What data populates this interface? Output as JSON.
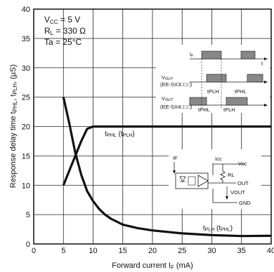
{
  "chart_data": {
    "type": "line",
    "xlabel": "Forward current I",
    "xlabel_sub": "F",
    "xlabel_unit": " (mA)",
    "ylabel": "Response delay time t",
    "ylabel_sub1": "PHL",
    "ylabel_mid": ", t",
    "ylabel_sub2": "PLH",
    "ylabel_unit": ", (µS)",
    "xlim": [
      0,
      40
    ],
    "ylim": [
      0,
      40
    ],
    "xticks": [
      0,
      5,
      10,
      15,
      20,
      25,
      30,
      35,
      40
    ],
    "yticks": [
      0,
      5,
      10,
      15,
      20,
      25,
      30,
      35,
      40
    ],
    "grid": true,
    "conditions": [
      {
        "main": "V",
        "sub": "CC",
        "rest": " = 5 V"
      },
      {
        "main": "R",
        "sub": "L",
        "rest": " = 330 Ω"
      },
      {
        "main": "Ta = 25°C",
        "sub": "",
        "rest": ""
      }
    ],
    "series": [
      {
        "label_main": "t",
        "label_sub": "PHL",
        "label_paren": " (t",
        "label_sub2": "PLH",
        "label_close": ")",
        "label_at": [
          12,
          18.4
        ],
        "x": [
          5,
          6,
          7,
          8,
          9,
          10,
          11,
          15,
          20,
          25,
          30,
          35,
          40
        ],
        "y": [
          10,
          12.5,
          15,
          17.5,
          19.6,
          20,
          20,
          20,
          20,
          20,
          20,
          20,
          20
        ]
      },
      {
        "label_main": "t",
        "label_sub": "PLH",
        "label_paren": " (t",
        "label_sub2": "PHL",
        "label_close": ")",
        "label_at": [
          28.5,
          2.3
        ],
        "x": [
          5,
          6,
          7,
          8,
          9,
          10,
          11,
          12,
          13,
          15,
          17.5,
          20,
          25,
          30,
          35,
          40
        ],
        "y": [
          25,
          20.5,
          15.5,
          11.8,
          9.0,
          7.3,
          6.0,
          5.0,
          4.3,
          3.3,
          2.7,
          2.3,
          1.8,
          1.5,
          1.35,
          1.4
        ]
      }
    ]
  },
  "inset": {
    "if_label": "I",
    "if_sub": "F",
    "t_label": "t",
    "vout_label": "V",
    "vout_sub": "OUT",
    "part1": "(EE-SX3□□□)",
    "part2": "(EE-SX4□□□)",
    "tplh": "tPLH",
    "tphl": "tPHL",
    "icc": "Icc",
    "vcc": "Vcc",
    "rl": "RL",
    "out": "OUT",
    "vout2": "VOUT",
    "gnd": "GND",
    "if2": "IF"
  }
}
